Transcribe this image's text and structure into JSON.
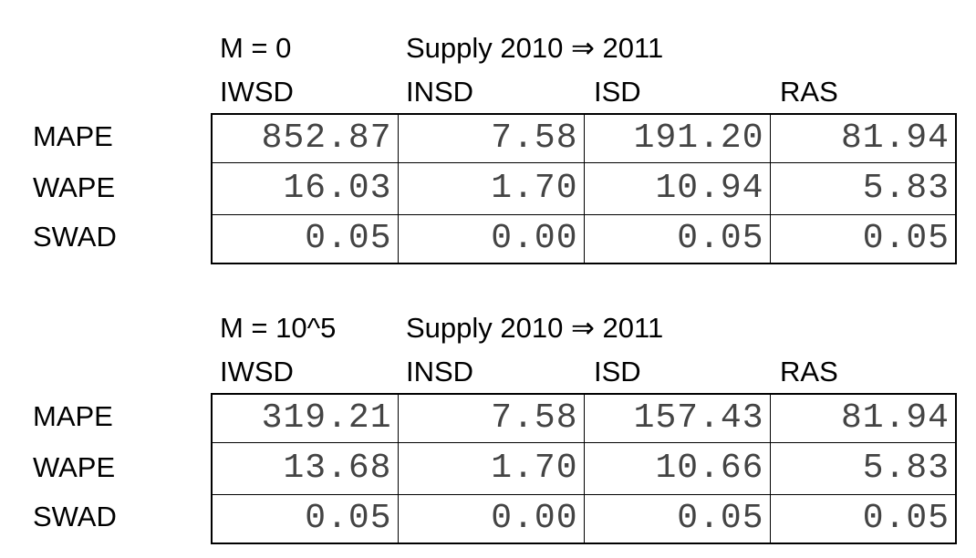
{
  "tables": [
    {
      "m_label": "M = 0",
      "supply_label": "Supply 2010 ⇒ 2011",
      "columns": [
        "IWSD",
        "INSD",
        "ISD",
        "RAS"
      ],
      "rows": [
        {
          "label": "MAPE",
          "values": [
            "852.87",
            "7.58",
            "191.20",
            "81.94"
          ]
        },
        {
          "label": "WAPE",
          "values": [
            "16.03",
            "1.70",
            "10.94",
            "5.83"
          ]
        },
        {
          "label": "SWAD",
          "values": [
            "0.05",
            "0.00",
            "0.05",
            "0.05"
          ]
        }
      ]
    },
    {
      "m_label": "M = 10^5",
      "supply_label": "Supply 2010 ⇒ 2011",
      "columns": [
        "IWSD",
        "INSD",
        "ISD",
        "RAS"
      ],
      "rows": [
        {
          "label": "MAPE",
          "values": [
            "319.21",
            "7.58",
            "157.43",
            "81.94"
          ]
        },
        {
          "label": "WAPE",
          "values": [
            "13.68",
            "1.70",
            "10.66",
            "5.83"
          ]
        },
        {
          "label": "SWAD",
          "values": [
            "0.05",
            "0.00",
            "0.05",
            "0.05"
          ]
        }
      ]
    }
  ]
}
